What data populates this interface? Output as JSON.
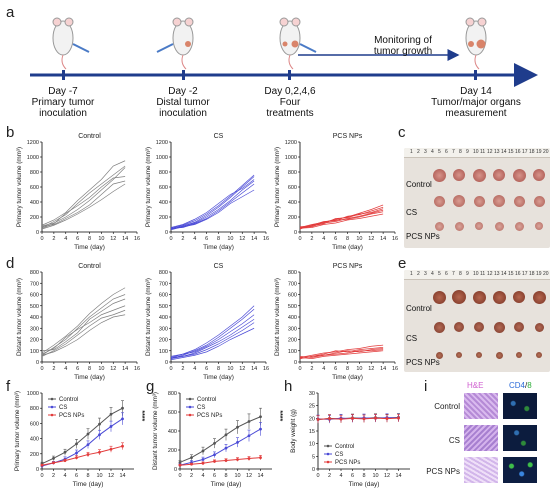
{
  "panels": {
    "a": "a",
    "b": "b",
    "c": "c",
    "d": "d",
    "e": "e",
    "f": "f",
    "g": "g",
    "h": "h",
    "i": "i"
  },
  "timeline": {
    "monitoring": "Monitoring of\ntumor growth",
    "events": [
      {
        "day": "Day -7",
        "desc": "Primary tumor\ninoculation"
      },
      {
        "day": "Day -2",
        "desc": "Distal tumor\ninoculation"
      },
      {
        "day": "Day 0,2,4,6",
        "desc": "Four\ntreatments"
      },
      {
        "day": "Day 14",
        "desc": "Tumor/major organs\nmeasurement"
      }
    ]
  },
  "photos": {
    "c_labels": [
      "Control",
      "CS",
      "PCS NPs"
    ],
    "e_labels": [
      "Control",
      "CS",
      "PCS NPs"
    ],
    "ruler_c": [
      "1",
      "2",
      "3",
      "4",
      "5",
      "6",
      "7",
      "8",
      "9",
      "10",
      "11",
      "12",
      "13",
      "14",
      "15",
      "16",
      "17",
      "18",
      "19",
      "20"
    ],
    "ruler_e": [
      "1",
      "2",
      "3",
      "4",
      "5",
      "6",
      "7",
      "8",
      "9",
      "10",
      "11",
      "12",
      "13",
      "14",
      "15",
      "16",
      "17",
      "18",
      "19",
      "20"
    ]
  },
  "histology": {
    "col1": "H&E",
    "col2a": "CD4",
    "col2b": "/",
    "col2c": "8",
    "rows": [
      "Control",
      "CS",
      "PCS NPs"
    ]
  },
  "chart_data": [
    {
      "id": "b-control",
      "type": "line",
      "title": "Control",
      "xlabel": "Time (day)",
      "ylabel": "Primary tumor volume (mm³)",
      "xlim": [
        0,
        16
      ],
      "ylim": [
        0,
        1200
      ],
      "xticks": [
        0,
        2,
        4,
        6,
        8,
        10,
        12,
        14,
        16
      ],
      "yticks": [
        0,
        200,
        400,
        600,
        800,
        1000,
        1200
      ],
      "color": "#7f7f7f",
      "x": [
        0,
        2,
        4,
        6,
        8,
        10,
        12,
        14
      ],
      "series": [
        {
          "values": [
            90,
            160,
            260,
            420,
            560,
            700,
            880,
            950
          ]
        },
        {
          "values": [
            60,
            140,
            230,
            380,
            520,
            640,
            760,
            880
          ]
        },
        {
          "values": [
            80,
            120,
            200,
            300,
            420,
            560,
            700,
            860
          ]
        },
        {
          "values": [
            50,
            110,
            250,
            350,
            460,
            600,
            720,
            740
          ]
        },
        {
          "values": [
            70,
            100,
            180,
            260,
            360,
            500,
            640,
            680
          ]
        },
        {
          "values": [
            40,
            90,
            160,
            240,
            330,
            430,
            540,
            640
          ]
        }
      ]
    },
    {
      "id": "b-cs",
      "type": "line",
      "title": "CS",
      "xlabel": "Time (day)",
      "ylabel": "Primary tumor volume (mm³)",
      "xlim": [
        0,
        16
      ],
      "ylim": [
        0,
        1200
      ],
      "xticks": [
        0,
        2,
        4,
        6,
        8,
        10,
        12,
        14,
        16
      ],
      "yticks": [
        0,
        200,
        400,
        600,
        800,
        1000,
        1200
      ],
      "color": "#4a4ad6",
      "x": [
        0,
        2,
        4,
        6,
        8,
        10,
        12,
        14
      ],
      "series": [
        {
          "values": [
            50,
            90,
            150,
            240,
            350,
            480,
            620,
            760
          ]
        },
        {
          "values": [
            40,
            80,
            130,
            220,
            330,
            460,
            600,
            740
          ]
        },
        {
          "values": [
            60,
            100,
            170,
            260,
            380,
            500,
            580,
            700
          ]
        },
        {
          "values": [
            30,
            70,
            120,
            200,
            300,
            420,
            560,
            680
          ]
        },
        {
          "values": [
            50,
            60,
            110,
            180,
            280,
            400,
            520,
            640
          ]
        },
        {
          "values": [
            40,
            70,
            100,
            170,
            260,
            380,
            470,
            560
          ]
        }
      ]
    },
    {
      "id": "b-pcs",
      "type": "line",
      "title": "PCS NPs",
      "xlabel": "Time (day)",
      "ylabel": "Primary tumor volume (mm³)",
      "xlim": [
        0,
        16
      ],
      "ylim": [
        0,
        1200
      ],
      "xticks": [
        0,
        2,
        4,
        6,
        8,
        10,
        12,
        14,
        16
      ],
      "yticks": [
        0,
        200,
        400,
        600,
        800,
        1000,
        1200
      ],
      "color": "#e23b3b",
      "x": [
        0,
        2,
        4,
        6,
        8,
        10,
        12,
        14
      ],
      "series": [
        {
          "values": [
            60,
            100,
            130,
            170,
            200,
            250,
            300,
            360
          ]
        },
        {
          "values": [
            50,
            90,
            140,
            150,
            210,
            230,
            280,
            330
          ]
        },
        {
          "values": [
            70,
            80,
            110,
            180,
            190,
            240,
            260,
            310
          ]
        },
        {
          "values": [
            40,
            90,
            120,
            140,
            180,
            210,
            250,
            290
          ]
        },
        {
          "values": [
            60,
            70,
            130,
            160,
            170,
            200,
            240,
            270
          ]
        },
        {
          "values": [
            50,
            60,
            100,
            120,
            160,
            180,
            210,
            240
          ]
        }
      ]
    },
    {
      "id": "d-control",
      "type": "line",
      "title": "Control",
      "xlabel": "Time (day)",
      "ylabel": "Distant tumor volume (mm³)",
      "xlim": [
        0,
        16
      ],
      "ylim": [
        0,
        800
      ],
      "xticks": [
        0,
        2,
        4,
        6,
        8,
        10,
        12,
        14,
        16
      ],
      "yticks": [
        0,
        100,
        200,
        300,
        400,
        500,
        600,
        700,
        800
      ],
      "color": "#7f7f7f",
      "x": [
        0,
        2,
        4,
        6,
        8,
        10,
        12,
        14
      ],
      "series": [
        {
          "values": [
            80,
            150,
            230,
            320,
            430,
            520,
            600,
            660
          ]
        },
        {
          "values": [
            60,
            130,
            200,
            300,
            400,
            480,
            560,
            600
          ]
        },
        {
          "values": [
            100,
            110,
            180,
            260,
            380,
            450,
            520,
            560
          ]
        },
        {
          "values": [
            70,
            120,
            220,
            290,
            350,
            420,
            460,
            500
          ]
        },
        {
          "values": [
            50,
            100,
            160,
            240,
            320,
            390,
            420,
            460
          ]
        },
        {
          "values": [
            60,
            90,
            140,
            200,
            280,
            350,
            400,
            420
          ]
        }
      ]
    },
    {
      "id": "d-cs",
      "type": "line",
      "title": "CS",
      "xlabel": "Time (day)",
      "ylabel": "Distant tumor volume (mm³)",
      "xlim": [
        0,
        16
      ],
      "ylim": [
        0,
        800
      ],
      "xticks": [
        0,
        2,
        4,
        6,
        8,
        10,
        12,
        14,
        16
      ],
      "yticks": [
        0,
        100,
        200,
        300,
        400,
        500,
        600,
        700,
        800
      ],
      "color": "#4a4ad6",
      "x": [
        0,
        2,
        4,
        6,
        8,
        10,
        12,
        14
      ],
      "series": [
        {
          "values": [
            40,
            70,
            110,
            170,
            240,
            320,
            400,
            500
          ]
        },
        {
          "values": [
            30,
            60,
            100,
            150,
            220,
            300,
            380,
            470
          ]
        },
        {
          "values": [
            50,
            70,
            90,
            140,
            200,
            270,
            340,
            420
          ]
        },
        {
          "values": [
            30,
            50,
            80,
            130,
            180,
            240,
            310,
            380
          ]
        },
        {
          "values": [
            40,
            50,
            70,
            110,
            160,
            220,
            280,
            350
          ]
        },
        {
          "values": [
            20,
            40,
            60,
            90,
            140,
            200,
            250,
            300
          ]
        }
      ]
    },
    {
      "id": "d-pcs",
      "type": "line",
      "title": "PCS NPs",
      "xlabel": "Time (day)",
      "ylabel": "Distant tumor volume (mm³)",
      "xlim": [
        0,
        16
      ],
      "ylim": [
        0,
        800
      ],
      "xticks": [
        0,
        2,
        4,
        6,
        8,
        10,
        12,
        14,
        16
      ],
      "yticks": [
        0,
        100,
        200,
        300,
        400,
        500,
        600,
        700,
        800
      ],
      "color": "#e23b3b",
      "x": [
        0,
        2,
        4,
        6,
        8,
        10,
        12,
        14
      ],
      "series": [
        {
          "values": [
            40,
            60,
            80,
            90,
            110,
            120,
            140,
            150
          ]
        },
        {
          "values": [
            30,
            50,
            70,
            100,
            90,
            110,
            120,
            130
          ]
        },
        {
          "values": [
            50,
            40,
            60,
            80,
            100,
            90,
            110,
            120
          ]
        },
        {
          "values": [
            30,
            50,
            60,
            70,
            80,
            100,
            100,
            110
          ]
        },
        {
          "values": [
            40,
            30,
            50,
            60,
            70,
            80,
            90,
            100
          ]
        }
      ]
    },
    {
      "id": "f",
      "type": "line",
      "xlabel": "Time (day)",
      "ylabel": "Primary tumor volume (mm³)",
      "xlim": [
        0,
        16
      ],
      "ylim": [
        0,
        1000
      ],
      "xticks": [
        0,
        2,
        4,
        6,
        8,
        10,
        12,
        14
      ],
      "yticks": [
        0,
        200,
        400,
        600,
        800,
        1000
      ],
      "legend": "top-left",
      "significance": "****",
      "x": [
        0,
        2,
        4,
        6,
        8,
        10,
        12,
        14
      ],
      "series": [
        {
          "name": "Control",
          "color": "#555555",
          "values": [
            70,
            140,
            220,
            330,
            460,
            590,
            720,
            800
          ],
          "err": [
            20,
            30,
            40,
            60,
            70,
            80,
            90,
            100
          ]
        },
        {
          "name": "CS",
          "color": "#4a4ad6",
          "values": [
            40,
            80,
            130,
            210,
            320,
            450,
            560,
            660
          ],
          "err": [
            15,
            20,
            30,
            40,
            50,
            60,
            70,
            80
          ]
        },
        {
          "name": "PCS NPs",
          "color": "#e23b3b",
          "values": [
            50,
            80,
            110,
            150,
            190,
            220,
            260,
            300
          ],
          "err": [
            10,
            15,
            20,
            25,
            30,
            35,
            40,
            45
          ]
        }
      ]
    },
    {
      "id": "g",
      "type": "line",
      "xlabel": "Time (day)",
      "ylabel": "Distant tumor volume (mm³)",
      "xlim": [
        0,
        16
      ],
      "ylim": [
        0,
        800
      ],
      "xticks": [
        0,
        2,
        4,
        6,
        8,
        10,
        12,
        14
      ],
      "yticks": [
        0,
        200,
        400,
        600,
        800
      ],
      "legend": "top-left",
      "significance": "****",
      "x": [
        0,
        2,
        4,
        6,
        8,
        10,
        12,
        14
      ],
      "series": [
        {
          "name": "Control",
          "color": "#555555",
          "values": [
            70,
            120,
            190,
            270,
            360,
            440,
            500,
            550
          ],
          "err": [
            20,
            30,
            40,
            50,
            60,
            70,
            80,
            90
          ]
        },
        {
          "name": "CS",
          "color": "#4a4ad6",
          "values": [
            40,
            70,
            100,
            150,
            220,
            280,
            350,
            420
          ],
          "err": [
            15,
            20,
            25,
            30,
            40,
            50,
            60,
            70
          ]
        },
        {
          "name": "PCS NPs",
          "color": "#e23b3b",
          "values": [
            40,
            50,
            60,
            80,
            90,
            100,
            110,
            120
          ],
          "err": [
            10,
            12,
            14,
            16,
            18,
            20,
            22,
            24
          ]
        }
      ]
    },
    {
      "id": "h",
      "type": "line",
      "xlabel": "Time (day)",
      "ylabel": "Body weight (g)",
      "xlim": [
        0,
        16
      ],
      "ylim": [
        0,
        30
      ],
      "xticks": [
        0,
        2,
        4,
        6,
        8,
        10,
        12,
        14
      ],
      "yticks": [
        0,
        5,
        10,
        15,
        20,
        25,
        30
      ],
      "legend": "bottom-left",
      "x": [
        0,
        2,
        4,
        6,
        8,
        10,
        12,
        14
      ],
      "series": [
        {
          "name": "Control",
          "color": "#555555",
          "values": [
            19.5,
            20,
            19.8,
            20.2,
            20,
            20.3,
            20.1,
            20.4
          ],
          "err": [
            1.5,
            1.5,
            1.5,
            1.5,
            1.5,
            1.5,
            1.5,
            1.5
          ]
        },
        {
          "name": "CS",
          "color": "#4a4ad6",
          "values": [
            19.8,
            19.6,
            20.1,
            19.9,
            20.2,
            20,
            20.3,
            20.2
          ],
          "err": [
            1.5,
            1.5,
            1.5,
            1.5,
            1.5,
            1.5,
            1.5,
            1.5
          ]
        },
        {
          "name": "PCS NPs",
          "color": "#e23b3b",
          "values": [
            19.6,
            19.9,
            19.7,
            20,
            19.8,
            20.1,
            19.9,
            20.1
          ],
          "err": [
            1.5,
            1.5,
            1.5,
            1.5,
            1.5,
            1.5,
            1.5,
            1.5
          ]
        }
      ]
    }
  ]
}
